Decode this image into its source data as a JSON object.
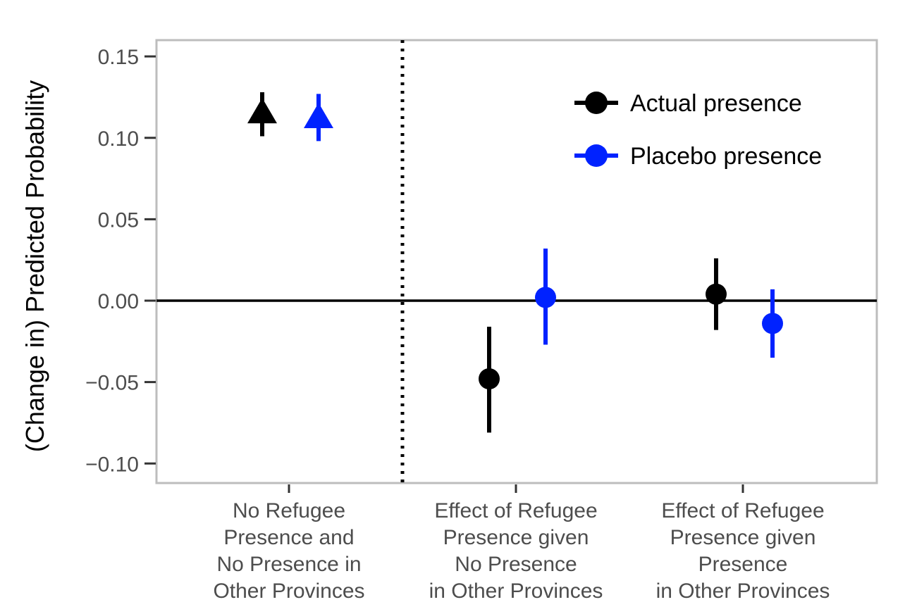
{
  "chart_data": {
    "type": "scatter",
    "title": "",
    "ylabel": "(Change in) Predicted Probability",
    "xlabel": "",
    "ylim": [
      -0.112,
      0.16
    ],
    "yticks": [
      -0.1,
      -0.05,
      0.0,
      0.05,
      0.1,
      0.15
    ],
    "ytick_labels": [
      "−0.10",
      "−0.05",
      "0.00",
      "0.05",
      "0.10",
      "0.15"
    ],
    "categories": [
      [
        "No Refugee",
        "Presence and",
        "No Presence in",
        "Other Provinces"
      ],
      [
        "Effect of Refugee",
        "Presence given",
        "No Presence",
        "in Other Provinces"
      ],
      [
        "Effect of Refugee",
        "Presence given",
        "Presence",
        "in Other Provinces"
      ]
    ],
    "reference_line_y": 0,
    "separator_after_category": 0,
    "grid": false,
    "legend_position": "top-right",
    "series": [
      {
        "name": "Actual presence",
        "color": "#000000",
        "points": [
          {
            "category": 0,
            "value": 0.115,
            "lower": 0.101,
            "upper": 0.128,
            "marker": "triangle"
          },
          {
            "category": 1,
            "value": -0.048,
            "lower": -0.081,
            "upper": -0.016,
            "marker": "circle"
          },
          {
            "category": 2,
            "value": 0.004,
            "lower": -0.018,
            "upper": 0.026,
            "marker": "circle"
          }
        ]
      },
      {
        "name": "Placebo presence",
        "color": "#0022ff",
        "points": [
          {
            "category": 0,
            "value": 0.112,
            "lower": 0.098,
            "upper": 0.127,
            "marker": "triangle"
          },
          {
            "category": 1,
            "value": 0.002,
            "lower": -0.027,
            "upper": 0.032,
            "marker": "circle"
          },
          {
            "category": 2,
            "value": -0.014,
            "lower": -0.035,
            "upper": 0.007,
            "marker": "circle"
          }
        ]
      }
    ]
  }
}
